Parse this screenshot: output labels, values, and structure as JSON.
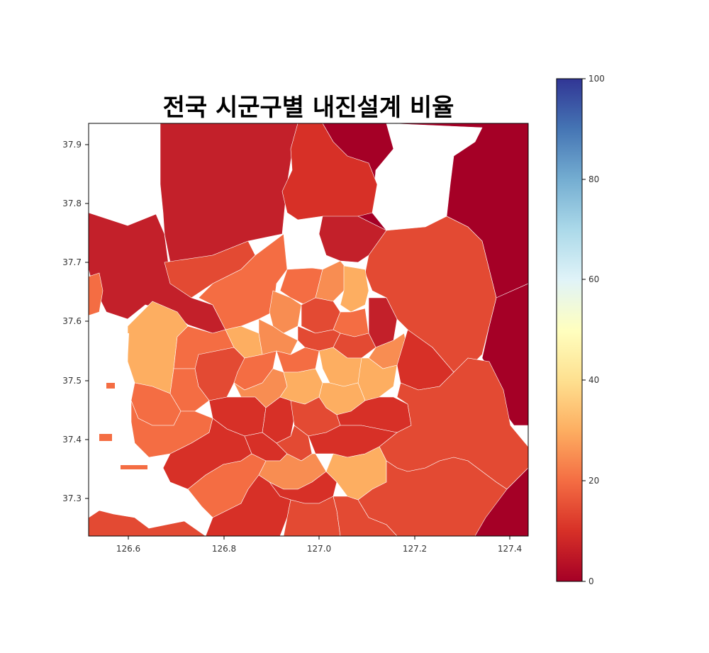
{
  "title": "전국 시군구별 내진설계 비율",
  "map": {
    "x_ticks": [
      "126.6",
      "126.8",
      "127.0",
      "127.2",
      "127.4"
    ],
    "y_ticks": [
      "37.9",
      "37.8",
      "37.7",
      "37.6",
      "37.5",
      "37.4",
      "37.3"
    ],
    "x_range": [
      126.51,
      127.44
    ],
    "y_range": [
      37.235,
      37.935
    ]
  },
  "colorbar": {
    "colormap": "RdYlBu",
    "min": 0,
    "max": 100,
    "ticks": [
      "0",
      "20",
      "40",
      "60",
      "80",
      "100"
    ]
  },
  "colors": {
    "ratio_0_5": "#a50026",
    "ratio_5_10": "#c3202a",
    "ratio_10_15": "#d73027",
    "ratio_15_20": "#e34a33",
    "ratio_20_25": "#f46d43",
    "ratio_25_30": "#f88d52",
    "ratio_30_35": "#fdae61",
    "water": "#ffffff"
  }
}
